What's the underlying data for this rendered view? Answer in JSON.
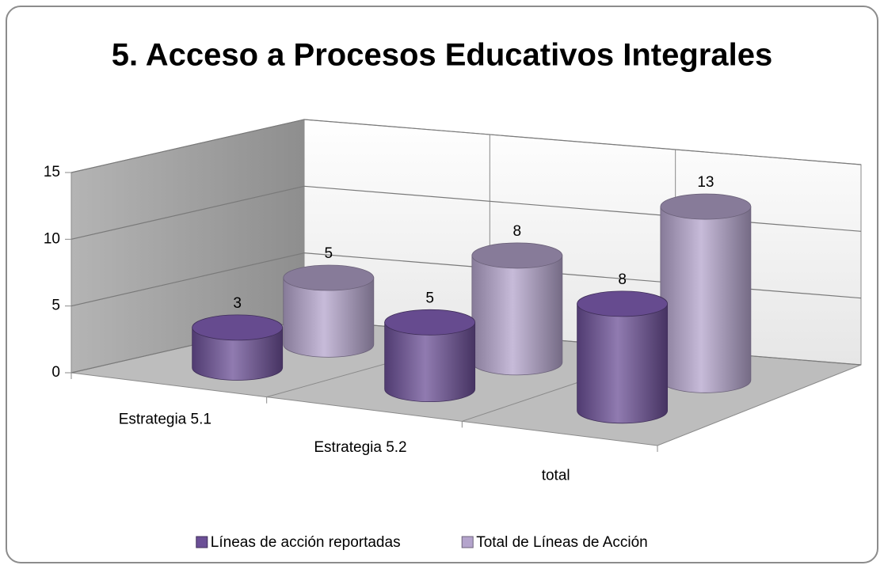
{
  "chart_data": {
    "type": "bar3d",
    "title": "5. Acceso a Procesos Educativos Integrales",
    "categories": [
      "Estrategia 5.1",
      "Estrategia 5.2",
      "total"
    ],
    "series": [
      {
        "name": "Líneas de acción reportadas",
        "color": "#6b4f96",
        "values": [
          3,
          5,
          8
        ]
      },
      {
        "name": "Total de Líneas de Acción",
        "color": "#b4a4cc",
        "values": [
          5,
          8,
          13
        ]
      }
    ],
    "ylim": [
      0,
      15
    ],
    "yticks": [
      0,
      5,
      10,
      15
    ],
    "grid": true,
    "legend": "bottom"
  }
}
